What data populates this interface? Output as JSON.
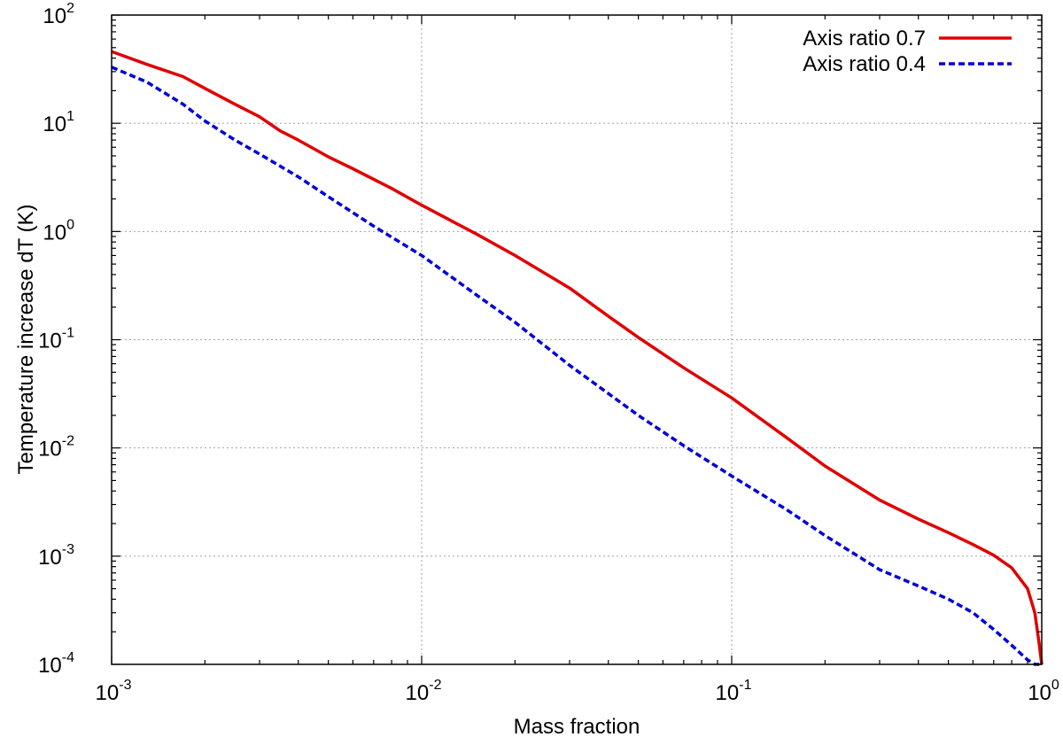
{
  "chart_data": {
    "type": "line",
    "xscale": "log",
    "yscale": "log",
    "xlim": [
      0.001,
      1
    ],
    "ylim": [
      0.0001,
      100
    ],
    "xlabel": "Mass fraction",
    "ylabel": "Temperature increase dT (K)",
    "grid": true,
    "legend_position": "top-right",
    "x_ticks": [
      {
        "base": "10",
        "exp": "-3",
        "value": 0.001
      },
      {
        "base": "10",
        "exp": "-2",
        "value": 0.01
      },
      {
        "base": "10",
        "exp": "-1",
        "value": 0.1
      },
      {
        "base": "10",
        "exp": "0",
        "value": 1
      }
    ],
    "y_ticks": [
      {
        "base": "10",
        "exp": "2",
        "value": 100
      },
      {
        "base": "10",
        "exp": "1",
        "value": 10
      },
      {
        "base": "10",
        "exp": "0",
        "value": 1
      },
      {
        "base": "10",
        "exp": "-1",
        "value": 0.1
      },
      {
        "base": "10",
        "exp": "-2",
        "value": 0.01
      },
      {
        "base": "10",
        "exp": "-3",
        "value": 0.001
      },
      {
        "base": "10",
        "exp": "-4",
        "value": 0.0001
      }
    ],
    "series": [
      {
        "name": "Axis ratio 0.7",
        "color": "#e00000",
        "style": "solid",
        "x": [
          0.001,
          0.0013,
          0.0017,
          0.002,
          0.0025,
          0.003,
          0.0035,
          0.004,
          0.005,
          0.006,
          0.008,
          0.01,
          0.015,
          0.02,
          0.03,
          0.04,
          0.05,
          0.07,
          0.1,
          0.15,
          0.2,
          0.3,
          0.4,
          0.5,
          0.6,
          0.7,
          0.8,
          0.9,
          0.95,
          0.98,
          1.0
        ],
        "values": [
          46,
          35,
          27,
          21,
          15,
          11.5,
          8.5,
          7.0,
          4.9,
          3.8,
          2.5,
          1.75,
          0.95,
          0.6,
          0.3,
          0.165,
          0.105,
          0.055,
          0.029,
          0.0125,
          0.0068,
          0.0033,
          0.0022,
          0.00165,
          0.00128,
          0.00102,
          0.00078,
          0.0005,
          0.0003,
          0.00016,
          0.0001
        ]
      },
      {
        "name": "Axis ratio 0.4",
        "color": "#0000d8",
        "style": "dashed",
        "x": [
          0.001,
          0.0013,
          0.0017,
          0.002,
          0.0025,
          0.003,
          0.004,
          0.005,
          0.007,
          0.01,
          0.015,
          0.02,
          0.03,
          0.05,
          0.07,
          0.1,
          0.15,
          0.2,
          0.3,
          0.4,
          0.5,
          0.6,
          0.7,
          0.8,
          0.9,
          0.95,
          1.0
        ],
        "values": [
          33,
          24,
          15,
          10.5,
          7.0,
          5.2,
          3.2,
          2.1,
          1.12,
          0.6,
          0.26,
          0.145,
          0.058,
          0.02,
          0.0105,
          0.0055,
          0.0027,
          0.00155,
          0.00075,
          0.00053,
          0.0004,
          0.0003,
          0.00021,
          0.00015,
          0.00011,
          0.0001,
          0.0001
        ]
      }
    ]
  }
}
